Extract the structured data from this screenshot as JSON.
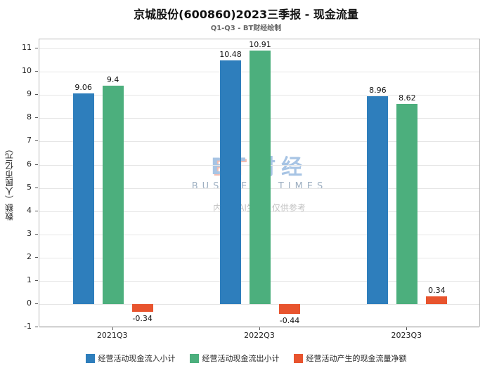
{
  "page": {
    "title": "京城股份(600860)2023三季报 - 现金流量",
    "subtitle": "Q1-Q3 - BT财经绘制"
  },
  "watermark": {
    "logo_mark": "BT",
    "logo_text": "财经",
    "logo_sub": "BUSINESS TIMES",
    "disclaimer": "内容由AI生成，仅供参考"
  },
  "chart_data": {
    "type": "bar",
    "title": "京城股份(600860)2023三季报 - 现金流量",
    "subtitle": "Q1-Q3 - BT财经绘制",
    "categories": [
      "2021Q3",
      "2022Q3",
      "2023Q3"
    ],
    "series": [
      {
        "name": "经营活动现金流入小计",
        "color": "#2e7ebc",
        "values": [
          9.06,
          10.48,
          8.96
        ]
      },
      {
        "name": "经营活动现金流出小计",
        "color": "#4caf7d",
        "values": [
          9.4,
          10.91,
          8.62
        ]
      },
      {
        "name": "经营活动产生的现金流量净额",
        "color": "#e8542e",
        "values": [
          -0.34,
          -0.44,
          0.34
        ]
      }
    ],
    "xlabel": "",
    "ylabel": "数额（人民币亿元）",
    "ylim": [
      -1,
      11.4
    ],
    "yticks": [
      -1,
      0,
      1,
      2,
      3,
      4,
      5,
      6,
      7,
      8,
      9,
      10,
      11
    ],
    "grid": true,
    "legend_position": "bottom"
  }
}
